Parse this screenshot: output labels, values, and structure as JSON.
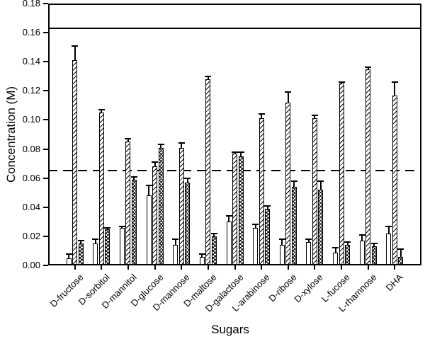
{
  "colors": {
    "ink": "#000000",
    "background": "#ffffff"
  },
  "chart_data": {
    "type": "bar",
    "title": "",
    "xlabel": "Sugars",
    "ylabel": "Concentration (M)",
    "ylim": [
      0,
      0.18
    ],
    "ytick_step": 0.02,
    "ytick_labels": [
      "0.00",
      "0.02",
      "0.04",
      "0.06",
      "0.08",
      "0.10",
      "0.12",
      "0.14",
      "0.16",
      "0.18"
    ],
    "grid": false,
    "legend_position": "none",
    "error_bars": "upper",
    "categories": [
      "D-fructose",
      "D-sorbitol",
      "D-mannitol",
      "D-glucose",
      "D-mannose",
      "D-maltose",
      "D-galactose",
      "L-arabinose",
      "D-ribose",
      "D-xylose",
      "L-fucose",
      "L-rhamnose",
      "DHA"
    ],
    "series": [
      {
        "name": "open-bar",
        "pattern": "plain-white",
        "values": [
          0.005,
          0.015,
          0.026,
          0.048,
          0.014,
          0.006,
          0.03,
          0.026,
          0.014,
          0.016,
          0.009,
          0.017,
          0.022
        ],
        "errors": [
          0.003,
          0.003,
          0.001,
          0.007,
          0.004,
          0.002,
          0.004,
          0.002,
          0.004,
          0.002,
          0.003,
          0.004,
          0.005
        ]
      },
      {
        "name": "diagonal-hatch-bar",
        "pattern": "diagonal-hatch",
        "values": [
          0.141,
          0.105,
          0.085,
          0.068,
          0.081,
          0.128,
          0.077,
          0.101,
          0.112,
          0.101,
          0.125,
          0.135,
          0.117
        ],
        "errors": [
          0.01,
          0.002,
          0.002,
          0.003,
          0.003,
          0.002,
          0.001,
          0.003,
          0.007,
          0.002,
          0.001,
          0.001,
          0.009
        ]
      },
      {
        "name": "cross-hatch-bar",
        "pattern": "cross-hatch",
        "values": [
          0.015,
          0.025,
          0.059,
          0.081,
          0.057,
          0.02,
          0.075,
          0.039,
          0.054,
          0.052,
          0.014,
          0.013,
          0.006
        ],
        "errors": [
          0.002,
          0.001,
          0.002,
          0.002,
          0.003,
          0.002,
          0.003,
          0.002,
          0.004,
          0.006,
          0.002,
          0.002,
          0.005
        ]
      }
    ],
    "reference_lines": [
      {
        "value": 0.163,
        "style": "solid"
      },
      {
        "value": 0.065,
        "style": "dashed"
      }
    ]
  }
}
